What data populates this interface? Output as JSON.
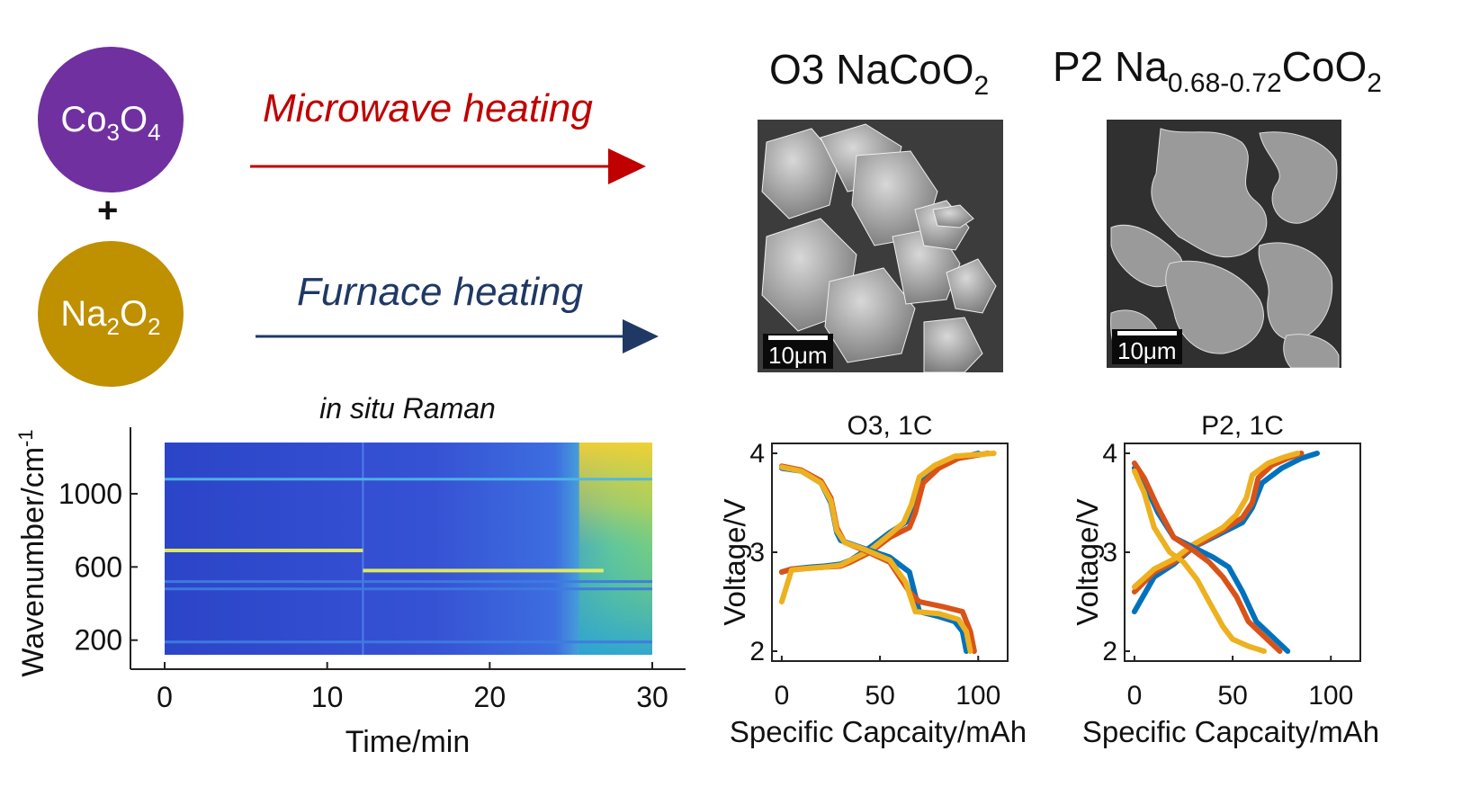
{
  "reactants": {
    "a": {
      "formula_base": "Co",
      "formula_sub": "3",
      "formula_tail": "O",
      "formula_tail_sub": "4",
      "color": "#7030a0"
    },
    "plus": "+",
    "b": {
      "formula_base": "Na",
      "formula_sub": "2",
      "formula_tail": "O",
      "formula_tail_sub": "2",
      "color": "#bf9000"
    }
  },
  "routes": {
    "microwave": {
      "label": "Microwave heating",
      "color": "#c00000"
    },
    "furnace": {
      "label": "Furnace heating",
      "color": "#1f3864"
    }
  },
  "products": {
    "o3": {
      "prefix": "O3 NaCoO",
      "sub": "2",
      "scale_label": "10μm"
    },
    "p2": {
      "prefix": "P2 Na",
      "sub1": "0.68-0.72",
      "mid": "CoO",
      "sub2": "2",
      "scale_label": "10μm"
    }
  },
  "raman": {
    "title": "in situ Raman",
    "xlabel": "Time/min",
    "ylabel_base": "Wavenumber/cm",
    "ylabel_sup": "-1",
    "xticks": [
      "0",
      "10",
      "20",
      "30"
    ],
    "yticks": [
      "200",
      "600",
      "1000"
    ]
  },
  "chart_data": [
    {
      "type": "heatmap",
      "title": "in situ Raman",
      "xlabel": "Time/min",
      "ylabel": "Wavenumber/cm-1",
      "xlim": [
        0,
        30
      ],
      "ylim": [
        120,
        1280
      ],
      "xticks": [
        0,
        10,
        20,
        30
      ],
      "yticks": [
        200,
        600,
        1000
      ],
      "bands": [
        {
          "x_start": 0,
          "x_end": 12.2,
          "wavenumber": 690,
          "intensity": "high"
        },
        {
          "x_start": 12.2,
          "x_end": 27,
          "wavenumber": 580,
          "intensity": "high"
        },
        {
          "x_start": 0,
          "x_end": 30,
          "wavenumber": 1080,
          "intensity": "medium"
        },
        {
          "x_start": 0,
          "x_end": 30,
          "wavenumber": 520,
          "intensity": "low"
        },
        {
          "x_start": 0,
          "x_end": 30,
          "wavenumber": 480,
          "intensity": "low"
        },
        {
          "x_start": 0,
          "x_end": 30,
          "wavenumber": 190,
          "intensity": "low"
        }
      ]
    },
    {
      "type": "line",
      "title": "O3, 1C",
      "xlabel": "Specific Capcaity/mAh",
      "ylabel": "Voltage/V",
      "xlim": [
        -5,
        115
      ],
      "ylim": [
        1.9,
        4.1
      ],
      "xticks": [
        0,
        50,
        100
      ],
      "yticks": [
        2,
        3,
        4
      ],
      "series": [
        {
          "color": "#0072bd",
          "x": [
            0,
            5,
            15,
            22,
            30,
            35,
            45,
            55,
            63,
            68,
            72,
            80,
            90,
            100
          ],
          "y": [
            2.8,
            2.83,
            2.85,
            2.86,
            2.88,
            2.92,
            3.05,
            3.2,
            3.3,
            3.45,
            3.75,
            3.88,
            3.95,
            4.0
          ]
        },
        {
          "color": "#d95319",
          "x": [
            0,
            5,
            15,
            22,
            30,
            35,
            45,
            55,
            65,
            68,
            72,
            80,
            90,
            105
          ],
          "y": [
            2.8,
            2.83,
            2.84,
            2.85,
            2.86,
            2.9,
            3.0,
            3.15,
            3.25,
            3.4,
            3.7,
            3.85,
            3.95,
            4.0
          ]
        },
        {
          "color": "#edb120",
          "x": [
            0,
            5,
            15,
            22,
            30,
            35,
            45,
            55,
            62,
            66,
            70,
            78,
            88,
            108
          ],
          "y": [
            2.5,
            2.82,
            2.84,
            2.85,
            2.87,
            2.92,
            3.02,
            3.18,
            3.3,
            3.48,
            3.76,
            3.88,
            3.97,
            4.0
          ]
        },
        {
          "color": "#0072bd",
          "x": [
            0,
            10,
            20,
            25,
            28,
            30,
            40,
            55,
            65,
            70,
            80,
            88,
            92,
            94
          ],
          "y": [
            3.85,
            3.82,
            3.7,
            3.5,
            3.2,
            3.12,
            3.05,
            2.95,
            2.8,
            2.4,
            2.35,
            2.3,
            2.2,
            2.0
          ]
        },
        {
          "color": "#d95319",
          "x": [
            0,
            10,
            20,
            25,
            28,
            32,
            42,
            55,
            65,
            70,
            82,
            92,
            96,
            98
          ],
          "y": [
            3.87,
            3.83,
            3.72,
            3.55,
            3.25,
            3.1,
            3.02,
            2.9,
            2.6,
            2.5,
            2.45,
            2.4,
            2.2,
            2.0
          ]
        },
        {
          "color": "#edb120",
          "x": [
            0,
            10,
            20,
            25,
            28,
            32,
            42,
            55,
            63,
            68,
            80,
            90,
            94,
            96
          ],
          "y": [
            3.86,
            3.82,
            3.7,
            3.52,
            3.22,
            3.1,
            3.03,
            2.92,
            2.7,
            2.4,
            2.38,
            2.32,
            2.2,
            2.0
          ]
        }
      ]
    },
    {
      "type": "line",
      "title": "P2, 1C",
      "xlabel": "Specific Capcaity/mAh",
      "ylabel": "Voltage/V",
      "xlim": [
        -5,
        115
      ],
      "ylim": [
        1.9,
        4.1
      ],
      "xticks": [
        0,
        50,
        100
      ],
      "yticks": [
        2,
        3,
        4
      ],
      "series": [
        {
          "color": "#0072bd",
          "x": [
            0,
            10,
            20,
            30,
            45,
            55,
            60,
            65,
            75,
            85,
            93
          ],
          "y": [
            2.4,
            2.75,
            2.88,
            3.05,
            3.2,
            3.3,
            3.45,
            3.7,
            3.85,
            3.95,
            4.0
          ]
        },
        {
          "color": "#d95319",
          "x": [
            0,
            10,
            20,
            30,
            45,
            55,
            60,
            63,
            70,
            78,
            85
          ],
          "y": [
            2.6,
            2.8,
            2.9,
            3.05,
            3.22,
            3.35,
            3.5,
            3.75,
            3.88,
            3.95,
            4.0
          ]
        },
        {
          "color": "#edb120",
          "x": [
            0,
            10,
            20,
            30,
            45,
            52,
            57,
            60,
            68,
            76,
            83
          ],
          "y": [
            2.65,
            2.83,
            2.93,
            3.08,
            3.25,
            3.38,
            3.55,
            3.78,
            3.9,
            3.96,
            4.0
          ]
        },
        {
          "color": "#0072bd",
          "x": [
            0,
            5,
            12,
            20,
            30,
            40,
            48,
            55,
            62,
            70,
            78
          ],
          "y": [
            3.85,
            3.7,
            3.4,
            3.15,
            3.05,
            2.95,
            2.85,
            2.6,
            2.3,
            2.15,
            2.0
          ]
        },
        {
          "color": "#d95319",
          "x": [
            0,
            5,
            12,
            20,
            30,
            38,
            45,
            52,
            58,
            66,
            74
          ],
          "y": [
            3.9,
            3.75,
            3.45,
            3.15,
            3.02,
            2.9,
            2.75,
            2.55,
            2.3,
            2.15,
            2.0
          ]
        },
        {
          "color": "#edb120",
          "x": [
            0,
            5,
            10,
            18,
            25,
            32,
            38,
            45,
            50,
            58,
            66
          ],
          "y": [
            3.82,
            3.6,
            3.25,
            3.0,
            2.9,
            2.72,
            2.5,
            2.25,
            2.12,
            2.05,
            2.0
          ]
        }
      ]
    }
  ]
}
